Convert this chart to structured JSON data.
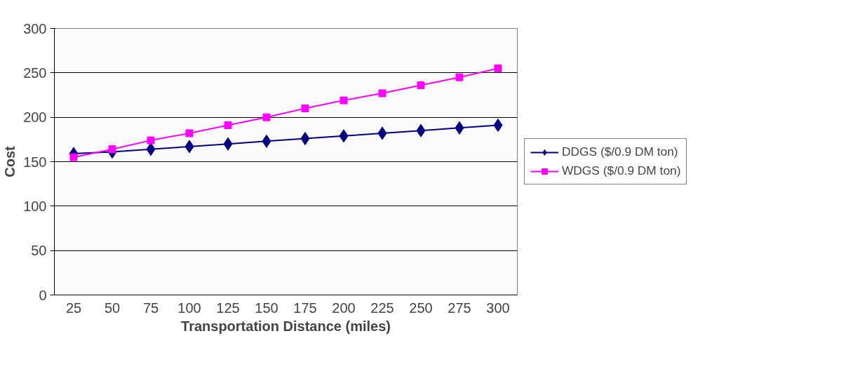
{
  "chart_data": {
    "type": "line",
    "xlabel": "Transportation Distance (miles)",
    "ylabel": "Cost",
    "categories": [
      "25",
      "50",
      "75",
      "100",
      "125",
      "150",
      "175",
      "200",
      "225",
      "250",
      "275",
      "300"
    ],
    "series": [
      {
        "name": "DDGS ($/0.9 DM ton)",
        "color": "#000080",
        "marker": "diamond",
        "values": [
          159,
          161,
          164,
          167,
          170,
          173,
          176,
          179,
          182,
          185,
          188,
          191
        ]
      },
      {
        "name": "WDGS ($/0.9 DM ton)",
        "color": "#ff00ff",
        "marker": "square",
        "values": [
          155,
          164,
          174,
          182,
          191,
          200,
          210,
          219,
          227,
          236,
          245,
          255
        ]
      }
    ],
    "ylim": [
      0,
      300
    ],
    "yticks": [
      0,
      50,
      100,
      150,
      200,
      250,
      300
    ],
    "grid": "y",
    "legend": "right",
    "line_style": "solid"
  }
}
